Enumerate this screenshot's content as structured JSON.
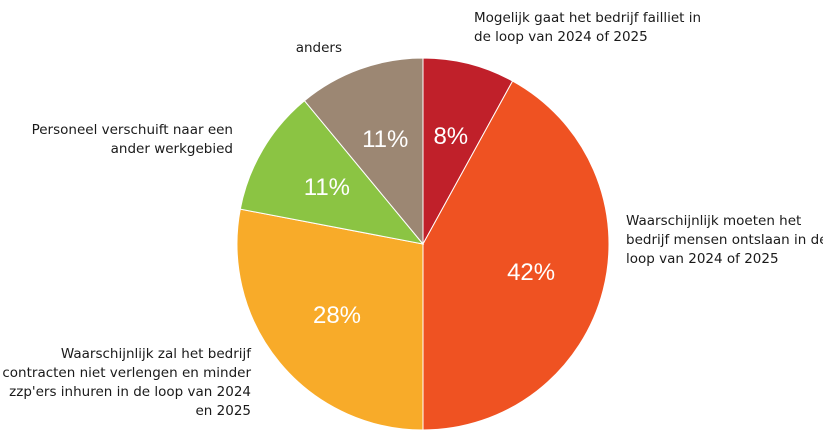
{
  "chart_data": {
    "type": "pie",
    "title": "",
    "start_angle_deg": 0,
    "direction": "clockwise",
    "slices": [
      {
        "value": 8,
        "percent_label": "8%",
        "label_lines": [
          "Mogelijk gaat het bedrijf failliet in",
          "de loop van 2024 of 2025"
        ],
        "color": "#c0202a"
      },
      {
        "value": 42,
        "percent_label": "42%",
        "label_lines": [
          "Waarschijnlijk moeten het",
          "bedrijf mensen ontslaan in de",
          "loop van 2024 of 2025"
        ],
        "color": "#ef5222"
      },
      {
        "value": 28,
        "percent_label": "28%",
        "label_lines": [
          "Waarschijnlijk zal het bedrijf",
          "contracten niet verlengen en minder",
          "zzp'ers inhuren in de loop van 2024",
          "en 2025"
        ],
        "color": "#f8ab29"
      },
      {
        "value": 11,
        "percent_label": "11%",
        "label_lines": [
          "Personeel verschuift naar een",
          "ander werkgebied"
        ],
        "color": "#8bc443"
      },
      {
        "value": 11,
        "percent_label": "11%",
        "label_lines": [
          "anders"
        ],
        "color": "#9c8773"
      }
    ]
  }
}
